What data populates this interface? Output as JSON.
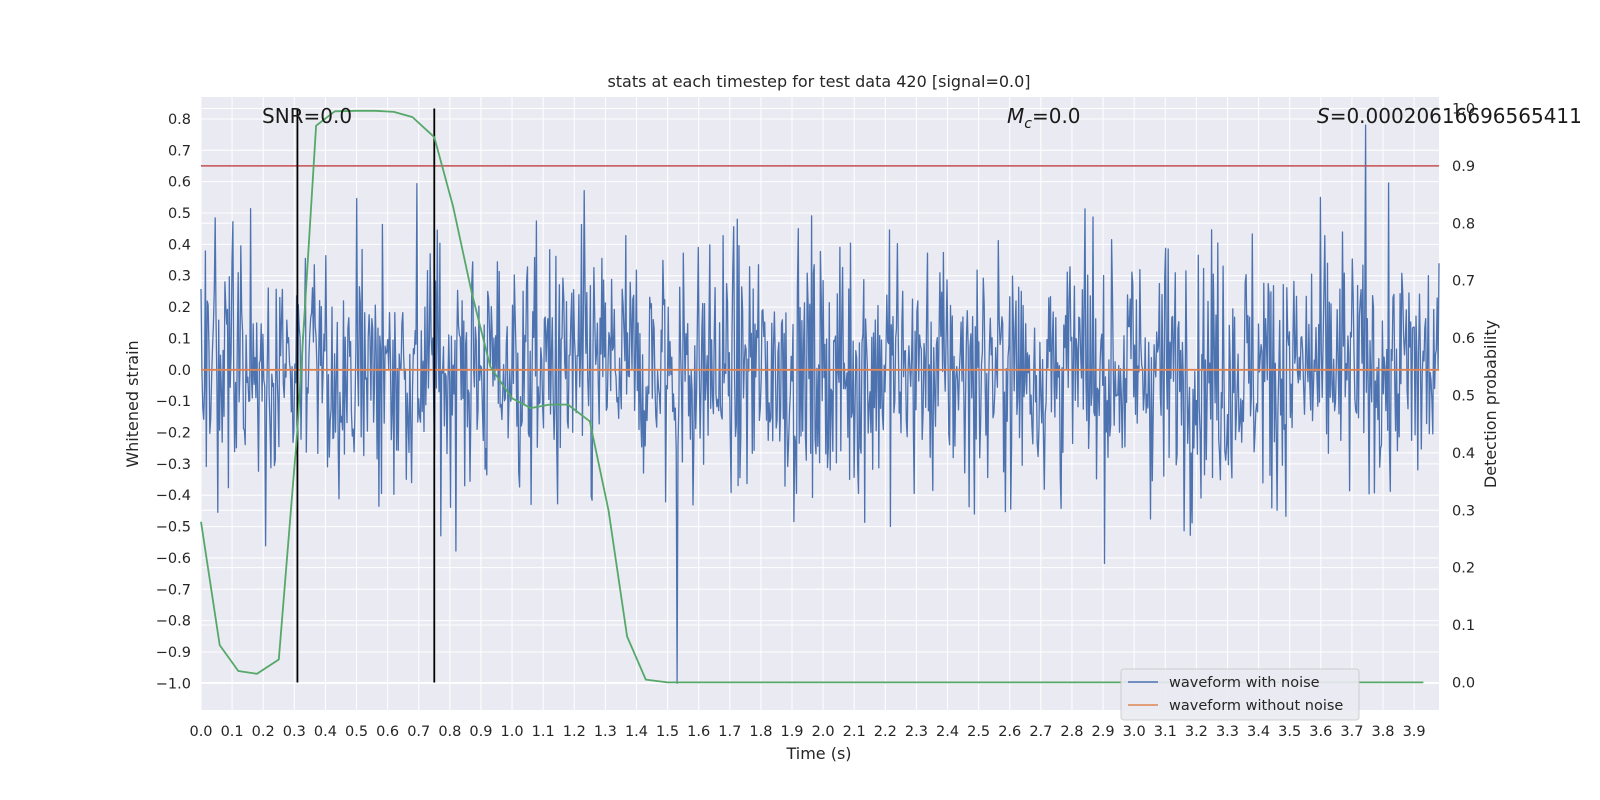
{
  "chart_data": {
    "type": "line",
    "title": "stats at each timestep for test data 420 [signal=0.0]",
    "xlabel": "Time (s)",
    "ylabel": "Whitened strain",
    "y2label": "Detection probability",
    "xlim": [
      0.0,
      3.98
    ],
    "ylim": [
      -1.085,
      0.87
    ],
    "y2lim": [
      -0.048,
      1.02
    ],
    "xticks": [
      "0.0",
      "0.1",
      "0.2",
      "0.3",
      "0.4",
      "0.5",
      "0.6",
      "0.7",
      "0.8",
      "0.9",
      "1.0",
      "1.1",
      "1.2",
      "1.3",
      "1.4",
      "1.5",
      "1.6",
      "1.7",
      "1.8",
      "1.9",
      "2.0",
      "2.1",
      "2.2",
      "2.3",
      "2.4",
      "2.5",
      "2.6",
      "2.7",
      "2.8",
      "2.9",
      "3.0",
      "3.1",
      "3.2",
      "3.3",
      "3.4",
      "3.5",
      "3.6",
      "3.7",
      "3.8",
      "3.9"
    ],
    "yticks": [
      "0.8",
      "0.7",
      "0.6",
      "0.5",
      "0.4",
      "0.3",
      "0.2",
      "0.1",
      "0.0",
      "−0.1",
      "−0.2",
      "−0.3",
      "−0.4",
      "−0.5",
      "−0.6",
      "−0.7",
      "−0.8",
      "−0.9",
      "−1.0"
    ],
    "y2ticks": [
      "1.0",
      "0.9",
      "0.8",
      "0.7",
      "0.6",
      "0.5",
      "0.4",
      "0.3",
      "0.2",
      "0.1",
      "0.0"
    ],
    "grid": true,
    "annotations": {
      "snr": "SNR=0.0",
      "mc_symbol": "M",
      "mc_sub": "c",
      "mc_value": "=0.0",
      "s_symbol": "S",
      "s_value": "=0.00020616696565411"
    },
    "threshold": {
      "value": 0.9,
      "axis": "y2",
      "color": "#c44e52"
    },
    "vlines": [
      0.31,
      0.75
    ],
    "series": [
      {
        "name": "waveform with noise",
        "color": "#4c72b0",
        "kind": "noise",
        "n_points": 1400,
        "peak_min": -1.0,
        "peak_max": 0.78
      },
      {
        "name": "waveform without noise",
        "color": "#dd8452",
        "y": 0.0
      },
      {
        "name": "detection probability",
        "color": "#55a868",
        "axis": "y2",
        "x": [
          0.0,
          0.06,
          0.12,
          0.18,
          0.25,
          0.31,
          0.37,
          0.43,
          0.5,
          0.56,
          0.62,
          0.68,
          0.75,
          0.81,
          0.87,
          0.93,
          1.0,
          1.06,
          1.12,
          1.18,
          1.25,
          1.31,
          1.37,
          1.43,
          1.5,
          1.56,
          1.62,
          1.68,
          1.75,
          1.81,
          1.87,
          1.93,
          2.0,
          2.06,
          2.12,
          2.18,
          2.25,
          2.31,
          2.37,
          2.43,
          2.5,
          2.56,
          2.62,
          2.68,
          2.75,
          2.81,
          2.87,
          2.93,
          3.0,
          3.06,
          3.12,
          3.18,
          3.25,
          3.31,
          3.37,
          3.43,
          3.5,
          3.56,
          3.62,
          3.68,
          3.75,
          3.81,
          3.87,
          3.93
        ],
        "values": [
          0.28,
          0.065,
          0.02,
          0.015,
          0.04,
          0.44,
          0.97,
          0.995,
          0.996,
          0.996,
          0.994,
          0.985,
          0.95,
          0.83,
          0.68,
          0.55,
          0.495,
          0.478,
          0.484,
          0.484,
          0.455,
          0.3,
          0.08,
          0.005,
          0.0,
          0.0,
          0.0,
          0.0,
          0.0,
          0.0,
          0.0,
          0.0,
          0.0,
          0.0,
          0.0,
          0.0,
          0.0,
          0.0,
          0.0,
          0.0,
          0.0,
          0.0,
          0.0,
          0.0,
          0.0,
          0.0,
          0.0,
          0.0,
          0.0,
          0.0,
          0.0,
          0.0,
          0.0,
          0.0,
          0.0,
          0.0,
          0.0,
          0.0,
          0.0,
          0.0,
          0.0,
          0.0,
          0.0,
          0.0
        ]
      }
    ],
    "legend": {
      "location": "lower-right",
      "entries": [
        {
          "label": "waveform with noise",
          "color": "#4c72b0"
        },
        {
          "label": "waveform without noise",
          "color": "#dd8452"
        }
      ]
    },
    "colors": {
      "axes_bg": "#eaeaf2",
      "grid": "#ffffff",
      "vline": "#000000"
    }
  }
}
